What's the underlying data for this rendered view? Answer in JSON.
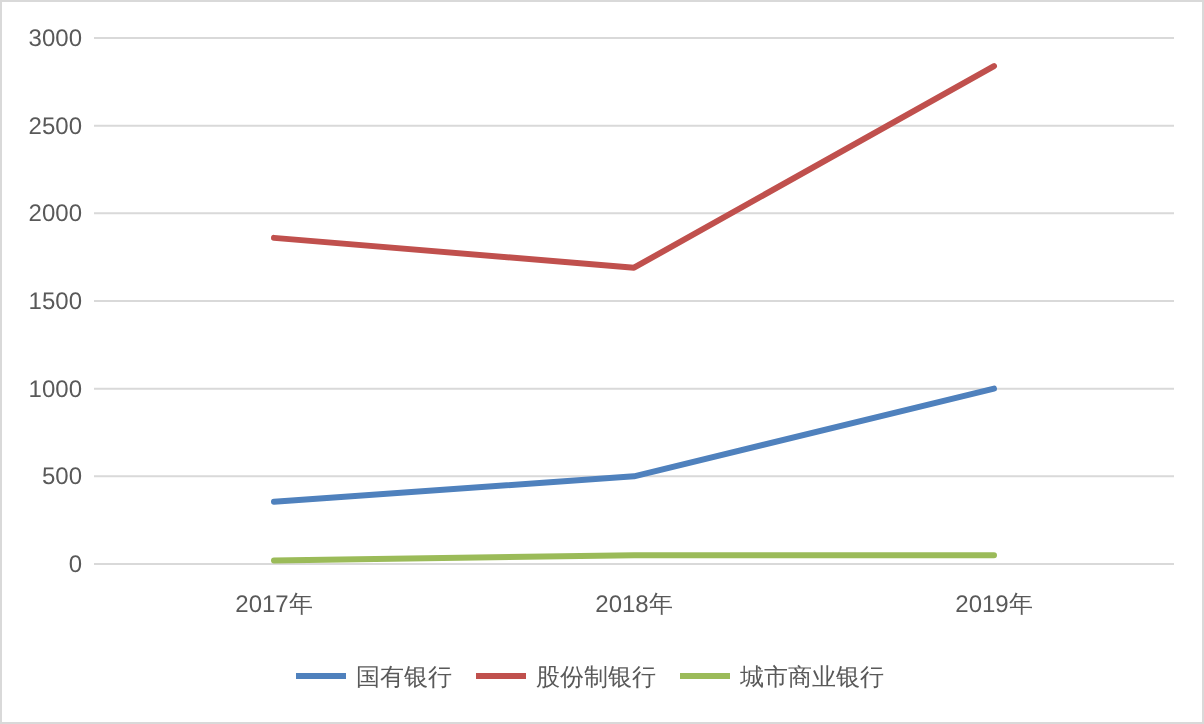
{
  "chart_data": {
    "type": "line",
    "categories": [
      "2017年",
      "2018年",
      "2019年"
    ],
    "series": [
      {
        "name": "国有银行",
        "color": "#4f81bd",
        "values": [
          355,
          500,
          1000
        ]
      },
      {
        "name": "股份制银行",
        "color": "#c0504d",
        "values": [
          1860,
          1690,
          2840
        ]
      },
      {
        "name": "城市商业银行",
        "color": "#9bbb59",
        "values": [
          20,
          50,
          50
        ]
      }
    ],
    "ylim": [
      0,
      3000
    ],
    "yticks": [
      0,
      500,
      1000,
      1500,
      2000,
      2500,
      3000
    ],
    "grid": "y",
    "legend": "bottom"
  }
}
